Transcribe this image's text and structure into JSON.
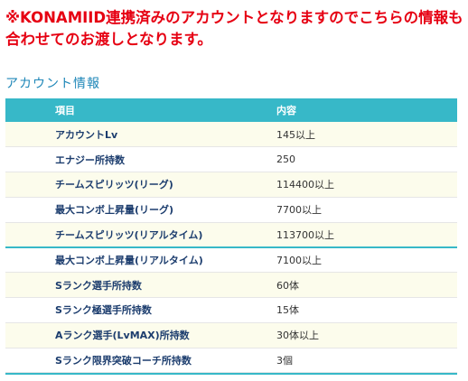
{
  "notice": {
    "line1": "※KONAMIID連携済みのアカウントとなりますのでこちらの情報も",
    "line2": "合わせてのお渡しとなります。"
  },
  "section_title": "アカウント情報",
  "table": {
    "headers": [
      "項目",
      "内容"
    ],
    "rows": [
      {
        "item": "アカウントLv",
        "value": "145以上"
      },
      {
        "item": "エナジー所持数",
        "value": "250"
      },
      {
        "item": "チームスピリッツ(リーグ)",
        "value": "114400以上"
      },
      {
        "item": "最大コンボ上昇量(リーグ)",
        "value": "7700以上"
      },
      {
        "item": "チームスピリッツ(リアルタイム)",
        "value": "113700以上"
      },
      {
        "item": "最大コンボ上昇量(リアルタイム)",
        "value": "7100以上"
      },
      {
        "item": "Sランク選手所持数",
        "value": "60体"
      },
      {
        "item": "Sランク極選手所持数",
        "value": "15体"
      },
      {
        "item": "Aランク選手(LvMAX)所持数",
        "value": "30体以上"
      },
      {
        "item": "Sランク限界突破コーチ所持数",
        "value": "3個"
      }
    ]
  },
  "colors": {
    "notice": "#e60012",
    "section_title": "#1f87b8",
    "header_bg": "#37b8c8",
    "row_alt_bg": "#fcfcec",
    "item_text": "#1c3d6e"
  }
}
